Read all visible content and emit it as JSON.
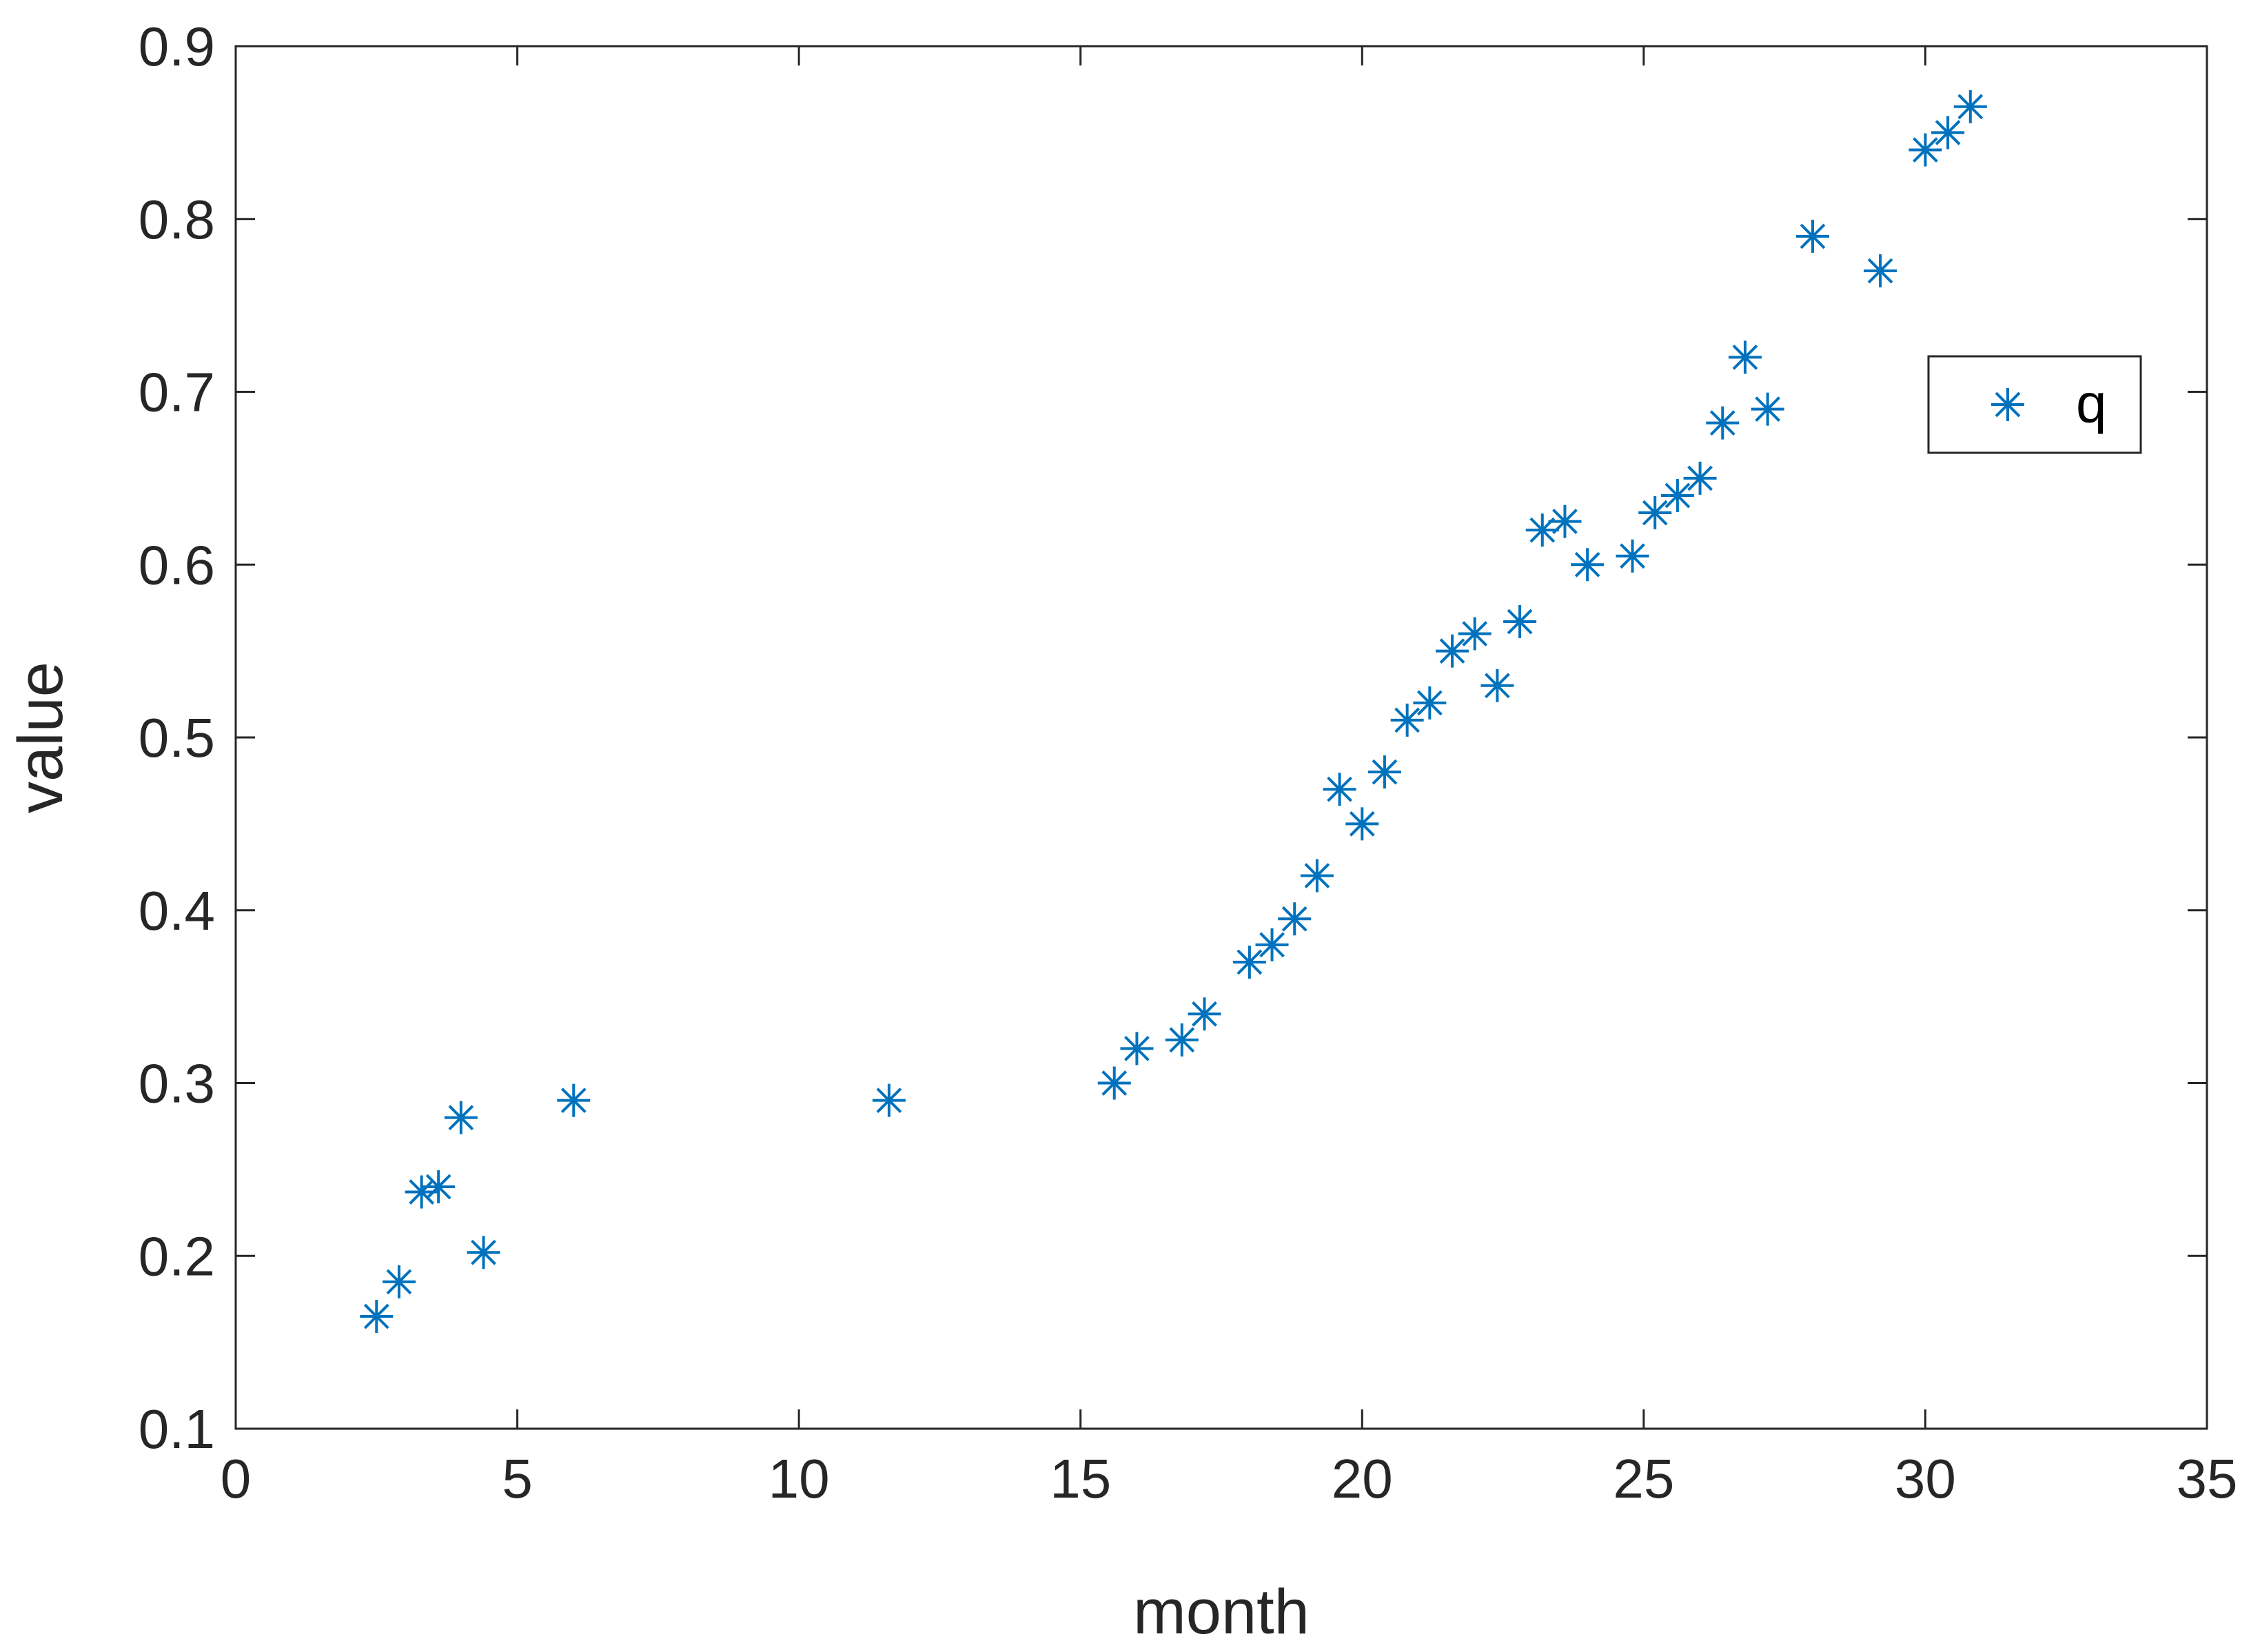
{
  "chart_data": {
    "type": "scatter",
    "title": "",
    "xlabel": "month",
    "ylabel": "value",
    "xlim": [
      0,
      35
    ],
    "ylim": [
      0.1,
      0.9
    ],
    "xticks": [
      0,
      5,
      10,
      15,
      20,
      25,
      30,
      35
    ],
    "yticks": [
      0.1,
      0.2,
      0.3,
      0.4,
      0.5,
      0.6,
      0.7,
      0.8,
      0.9
    ],
    "xtick_labels": [
      "0",
      "5",
      "10",
      "15",
      "20",
      "25",
      "30",
      "35"
    ],
    "ytick_labels": [
      "0.1",
      "0.2",
      "0.3",
      "0.4",
      "0.5",
      "0.6",
      "0.7",
      "0.8",
      "0.9"
    ],
    "grid": false,
    "legend_position": "upper-right",
    "marker": "asterisk",
    "series": [
      {
        "name": "q",
        "color": "#0072BD",
        "x": [
          2.5,
          2.9,
          3.3,
          3.6,
          4.0,
          4.4,
          6.0,
          11.6,
          15.6,
          16.0,
          16.8,
          17.2,
          18.0,
          18.4,
          18.8,
          19.2,
          19.6,
          20.0,
          20.4,
          20.8,
          21.2,
          21.6,
          22.0,
          22.4,
          22.8,
          23.2,
          23.6,
          24.0,
          24.8,
          25.2,
          25.6,
          26.0,
          26.4,
          26.8,
          27.2,
          28.0,
          29.2,
          30.0,
          30.4,
          30.8
        ],
        "y": [
          0.165,
          0.185,
          0.237,
          0.24,
          0.28,
          0.202,
          0.29,
          0.29,
          0.3,
          0.32,
          0.325,
          0.34,
          0.37,
          0.38,
          0.395,
          0.42,
          0.47,
          0.45,
          0.48,
          0.51,
          0.52,
          0.55,
          0.56,
          0.53,
          0.567,
          0.62,
          0.625,
          0.6,
          0.605,
          0.63,
          0.64,
          0.65,
          0.682,
          0.72,
          0.69,
          0.79,
          0.77,
          0.84,
          0.85,
          0.865
        ]
      }
    ]
  }
}
